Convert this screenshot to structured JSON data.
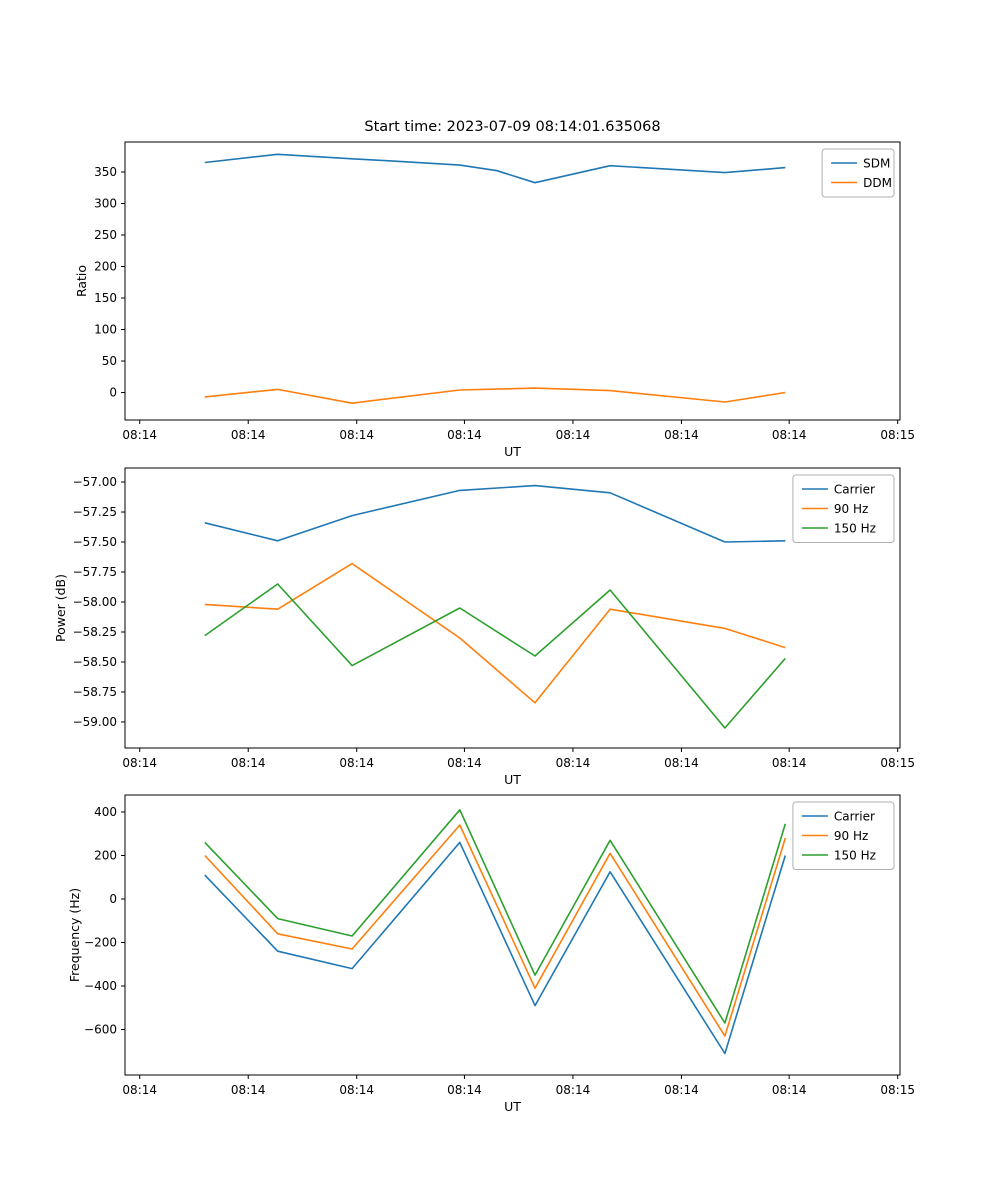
{
  "figure": {
    "title": "Start time: 2023-07-09 08:14:01.635068",
    "background": "#ffffff",
    "frame_color": "#000000",
    "legend_border_color": "#b0b0b0"
  },
  "chart_data": [
    {
      "type": "line",
      "title": "Start time: 2023-07-09 08:14:01.635068",
      "xlabel": "UT",
      "ylabel": "Ratio",
      "ylim": [
        -43.6,
        397.6
      ],
      "grid": false,
      "legend_position": "upper right",
      "yticks": [
        {
          "value": 0,
          "label": "0"
        },
        {
          "value": 50,
          "label": "50"
        },
        {
          "value": 100,
          "label": "100"
        },
        {
          "value": 150,
          "label": "150"
        },
        {
          "value": 200,
          "label": "200"
        },
        {
          "value": 250,
          "label": "250"
        },
        {
          "value": 300,
          "label": "300"
        },
        {
          "value": 350,
          "label": "350"
        }
      ],
      "xticks": [
        {
          "pos": 0.019,
          "label": "08:14"
        },
        {
          "pos": 0.159,
          "label": "08:14"
        },
        {
          "pos": 0.299,
          "label": "08:14"
        },
        {
          "pos": 0.438,
          "label": "08:14"
        },
        {
          "pos": 0.578,
          "label": "08:14"
        },
        {
          "pos": 0.718,
          "label": "08:14"
        },
        {
          "pos": 0.857,
          "label": "08:14"
        },
        {
          "pos": 0.997,
          "label": "08:15"
        }
      ],
      "x": [
        0.103,
        0.197,
        0.293,
        0.338,
        0.432,
        0.48,
        0.529,
        0.626,
        0.774,
        0.852
      ],
      "series": [
        {
          "name": "SDM",
          "color": "#1f77b4",
          "values": [
            365,
            378,
            371,
            368,
            361,
            352,
            333,
            360,
            349,
            357
          ]
        },
        {
          "name": "DDM",
          "color": "#ff7f0e",
          "values": [
            -7,
            5,
            -17,
            -10,
            4,
            5.5,
            7,
            3,
            -15,
            0
          ]
        }
      ]
    },
    {
      "type": "line",
      "title": "",
      "xlabel": "UT",
      "ylabel": "Power (dB)",
      "ylim": [
        -59.217,
        -56.883
      ],
      "grid": false,
      "legend_position": "upper right",
      "yticks": [
        {
          "value": -59.0,
          "label": "−59.00"
        },
        {
          "value": -58.75,
          "label": "−58.75"
        },
        {
          "value": -58.5,
          "label": "−58.50"
        },
        {
          "value": -58.25,
          "label": "−58.25"
        },
        {
          "value": -58.0,
          "label": "−58.00"
        },
        {
          "value": -57.75,
          "label": "−57.75"
        },
        {
          "value": -57.5,
          "label": "−57.50"
        },
        {
          "value": -57.25,
          "label": "−57.25"
        },
        {
          "value": -57.0,
          "label": "−57.00"
        }
      ],
      "xticks": [
        {
          "pos": 0.019,
          "label": "08:14"
        },
        {
          "pos": 0.159,
          "label": "08:14"
        },
        {
          "pos": 0.299,
          "label": "08:14"
        },
        {
          "pos": 0.438,
          "label": "08:14"
        },
        {
          "pos": 0.578,
          "label": "08:14"
        },
        {
          "pos": 0.718,
          "label": "08:14"
        },
        {
          "pos": 0.857,
          "label": "08:14"
        },
        {
          "pos": 0.997,
          "label": "08:15"
        }
      ],
      "x": [
        0.103,
        0.197,
        0.293,
        0.432,
        0.529,
        0.626,
        0.774,
        0.852
      ],
      "series": [
        {
          "name": "Carrier",
          "color": "#1f77b4",
          "values": [
            -57.34,
            -57.49,
            -57.28,
            -57.07,
            -57.03,
            -57.09,
            -57.5,
            -57.49
          ]
        },
        {
          "name": "90 Hz",
          "color": "#ff7f0e",
          "values": [
            -58.02,
            -58.06,
            -57.68,
            -58.3,
            -58.84,
            -58.06,
            -58.22,
            -58.38
          ]
        },
        {
          "name": "150 Hz",
          "color": "#2ca02c",
          "values": [
            -58.28,
            -57.85,
            -58.53,
            -58.05,
            -58.45,
            -57.9,
            -59.05,
            -58.47
          ]
        }
      ]
    },
    {
      "type": "line",
      "title": "",
      "xlabel": "UT",
      "ylabel": "Frequency (Hz)",
      "ylim": [
        -809,
        478
      ],
      "grid": false,
      "legend_position": "upper right",
      "yticks": [
        {
          "value": -600,
          "label": "−600"
        },
        {
          "value": -400,
          "label": "−400"
        },
        {
          "value": -200,
          "label": "−200"
        },
        {
          "value": 0,
          "label": "0"
        },
        {
          "value": 200,
          "label": "200"
        },
        {
          "value": 400,
          "label": "400"
        }
      ],
      "xticks": [
        {
          "pos": 0.019,
          "label": "08:14"
        },
        {
          "pos": 0.159,
          "label": "08:14"
        },
        {
          "pos": 0.299,
          "label": "08:14"
        },
        {
          "pos": 0.438,
          "label": "08:14"
        },
        {
          "pos": 0.578,
          "label": "08:14"
        },
        {
          "pos": 0.718,
          "label": "08:14"
        },
        {
          "pos": 0.857,
          "label": "08:14"
        },
        {
          "pos": 0.997,
          "label": "08:15"
        }
      ],
      "x": [
        0.103,
        0.197,
        0.293,
        0.432,
        0.529,
        0.626,
        0.774,
        0.852
      ],
      "series": [
        {
          "name": "Carrier",
          "color": "#1f77b4",
          "values": [
            110,
            -240,
            -320,
            260,
            -490,
            125,
            -710,
            200
          ]
        },
        {
          "name": "90 Hz",
          "color": "#ff7f0e",
          "values": [
            200,
            -160,
            -230,
            340,
            -410,
            210,
            -630,
            280
          ]
        },
        {
          "name": "150 Hz",
          "color": "#2ca02c",
          "values": [
            260,
            -90,
            -170,
            410,
            -350,
            270,
            -570,
            345
          ]
        }
      ]
    }
  ]
}
